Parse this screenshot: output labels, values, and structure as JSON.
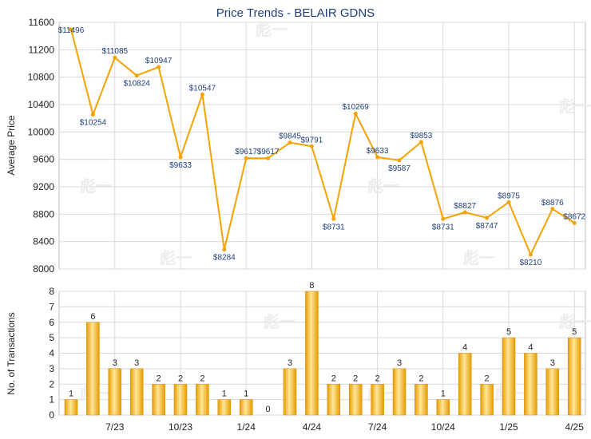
{
  "title": "Price Trends - BELAIR GDNS",
  "colors": {
    "line": "#f5a300",
    "bar_light": "#ffe79a",
    "bar_dark": "#e79b00",
    "grid": "#d9d9d9"
  },
  "chart_data": [
    {
      "type": "line",
      "ylabel": "Average Price",
      "ylim": [
        8000,
        11600
      ],
      "yticks": [
        8000,
        8400,
        8800,
        9200,
        9600,
        10000,
        10400,
        10800,
        11200,
        11600
      ],
      "x_tick_labels": [
        "7/23",
        "10/23",
        "1/24",
        "4/24",
        "7/24",
        "10/24",
        "1/25",
        "4/25"
      ],
      "grid": true,
      "points": [
        {
          "x": 0,
          "y": 11496,
          "label": "$11496"
        },
        {
          "x": 1,
          "y": 10254,
          "label": "$10254"
        },
        {
          "x": 2,
          "y": 11085,
          "label": "$11085"
        },
        {
          "x": 3,
          "y": 10824,
          "label": "$10824"
        },
        {
          "x": 4,
          "y": 10947,
          "label": "$10947"
        },
        {
          "x": 5,
          "y": 9633,
          "label": "$9633"
        },
        {
          "x": 6,
          "y": 10547,
          "label": "$10547"
        },
        {
          "x": 7,
          "y": 8284,
          "label": "$8284"
        },
        {
          "x": 8,
          "y": 9617,
          "label": "$9617"
        },
        {
          "x": 9,
          "y": 9617,
          "label": "$9617"
        },
        {
          "x": 10,
          "y": 9845,
          "label": "$9845"
        },
        {
          "x": 11,
          "y": 9791,
          "label": "$9791"
        },
        {
          "x": 12,
          "y": 8731,
          "label": "$8731"
        },
        {
          "x": 13,
          "y": 10269,
          "label": "$10269"
        },
        {
          "x": 14,
          "y": 9633,
          "label": "$9633"
        },
        {
          "x": 15,
          "y": 9587,
          "label": "$9587"
        },
        {
          "x": 16,
          "y": 9853,
          "label": "$9853"
        },
        {
          "x": 17,
          "y": 8731,
          "label": "$8731"
        },
        {
          "x": 18,
          "y": 8827,
          "label": "$8827"
        },
        {
          "x": 19,
          "y": 8747,
          "label": "$8747"
        },
        {
          "x": 20,
          "y": 8975,
          "label": "$8975"
        },
        {
          "x": 21,
          "y": 8210,
          "label": "$8210"
        },
        {
          "x": 22,
          "y": 8876,
          "label": "$8876"
        },
        {
          "x": 23,
          "y": 8672,
          "label": "$8672"
        }
      ]
    },
    {
      "type": "bar",
      "ylabel": "No. of Transactions",
      "ylim": [
        0,
        8
      ],
      "yticks": [
        0,
        1,
        2,
        3,
        4,
        5,
        6,
        7,
        8
      ],
      "x_tick_labels": [
        "7/23",
        "10/23",
        "1/24",
        "4/24",
        "7/24",
        "10/24",
        "1/25",
        "4/25"
      ],
      "grid": true,
      "values": [
        1,
        6,
        3,
        3,
        2,
        2,
        2,
        1,
        1,
        0,
        3,
        8,
        2,
        2,
        2,
        3,
        2,
        1,
        4,
        2,
        5,
        4,
        3,
        5
      ]
    }
  ]
}
